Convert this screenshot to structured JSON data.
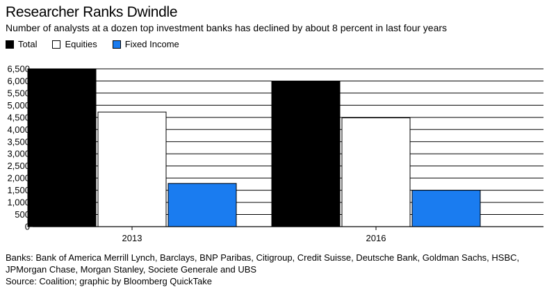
{
  "chart_data": {
    "type": "bar",
    "title": "Researcher Ranks Dwindle",
    "subtitle": "Number of analysts at a dozen top investment banks has declined by about 8 percent in last four years",
    "categories": [
      "2013",
      "2016"
    ],
    "series": [
      {
        "name": "Total",
        "values": [
          6500,
          5980
        ],
        "color": "#000000"
      },
      {
        "name": "Equities",
        "values": [
          4720,
          4480
        ],
        "color": "#ffffff"
      },
      {
        "name": "Fixed Income",
        "values": [
          1780,
          1500
        ],
        "color": "#1a7cf0"
      }
    ],
    "ylim": [
      0,
      6500
    ],
    "yticks": [
      0,
      500,
      1000,
      1500,
      2000,
      2500,
      3000,
      3500,
      4000,
      4500,
      5000,
      5500,
      6000,
      6500
    ],
    "ytick_labels": [
      "0",
      "500",
      "1,000",
      "1,500",
      "2,000",
      "2,500",
      "3,000",
      "3,500",
      "4,000",
      "4,500",
      "5,000",
      "5,500",
      "6,000",
      "6,500"
    ],
    "grid": true,
    "legend": "top-left",
    "xlabel": "",
    "ylabel": ""
  },
  "footnote": "Banks: Bank of America Merrill Lynch, Barclays, BNP Paribas, Citigroup, Credit Suisse, Deutsche Bank, Goldman Sachs, HSBC, JPMorgan Chase, Morgan Stanley, Societe Generale and UBS",
  "source": "Source: Coalition; graphic by Bloomberg QuickTake"
}
